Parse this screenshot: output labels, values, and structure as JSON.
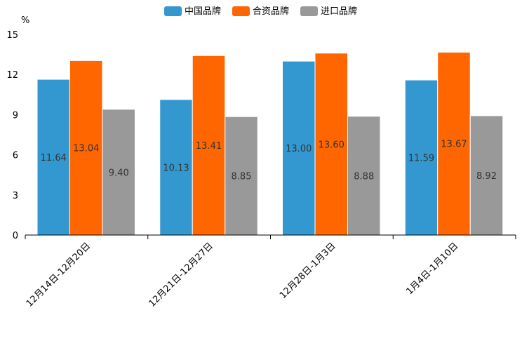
{
  "chart_data": {
    "type": "bar",
    "title": "",
    "xlabel": "",
    "ylabel": "%",
    "ylim": [
      0,
      15
    ],
    "yticks": [
      0,
      3,
      6,
      9,
      12,
      15
    ],
    "grid": false,
    "legend_position": "top-center",
    "categories": [
      "12月14日-12月20日",
      "12月21日-12月27日",
      "12月28日-1月3日",
      "1月4日-1月10日"
    ],
    "series": [
      {
        "name": "中国品牌",
        "color": "#3498d0",
        "values": [
          11.64,
          10.13,
          13.0,
          11.59
        ],
        "labels": [
          "11.64",
          "10.13",
          "13.00",
          "11.59"
        ]
      },
      {
        "name": "合资品牌",
        "color": "#ff6600",
        "values": [
          13.04,
          13.41,
          13.6,
          13.67
        ],
        "labels": [
          "13.04",
          "13.41",
          "13.60",
          "13.67"
        ]
      },
      {
        "name": "进口品牌",
        "color": "#999999",
        "values": [
          9.4,
          8.85,
          8.88,
          8.92
        ],
        "labels": [
          "9.40",
          "8.85",
          "8.88",
          "8.92"
        ]
      }
    ]
  }
}
